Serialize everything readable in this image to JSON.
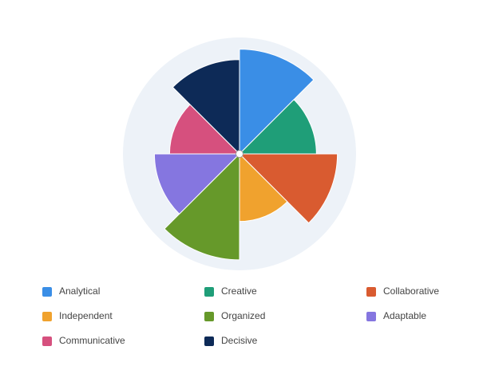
{
  "chart_data": {
    "type": "polarArea",
    "categories": [
      "Analytical",
      "Creative",
      "Collaborative",
      "Independent",
      "Organized",
      "Adaptable",
      "Communicative",
      "Decisive"
    ],
    "values": [
      90,
      66,
      84,
      58,
      91,
      73,
      60,
      81
    ],
    "colors": [
      "#3a8ee6",
      "#1f9e78",
      "#d95b30",
      "#f0a22e",
      "#66992a",
      "#8576e0",
      "#d6507e",
      "#0d2a57"
    ],
    "rlim": [
      0,
      100
    ]
  }
}
